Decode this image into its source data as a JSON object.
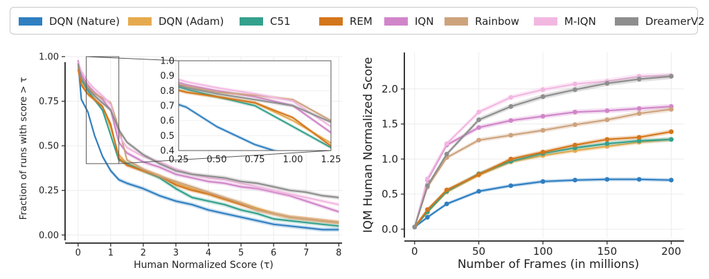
{
  "legend": [
    {
      "label": "DQN (Nature)",
      "color": "#2f7fc1"
    },
    {
      "label": "DQN (Adam)",
      "color": "#e6aa4e"
    },
    {
      "label": "C51",
      "color": "#34a18d"
    },
    {
      "label": "REM",
      "color": "#d4761b"
    },
    {
      "label": "IQN",
      "color": "#d185c9"
    },
    {
      "label": "Rainbow",
      "color": "#cda37c"
    },
    {
      "label": "M-IQN",
      "color": "#f2b7e1"
    },
    {
      "label": "DreamerV2",
      "color": "#8e8e8e"
    }
  ],
  "chart_data": [
    {
      "type": "line",
      "xlabel": "Human Normalized Score (τ)",
      "ylabel": "Fraction of runs with score > τ",
      "xlim": [
        -0.4,
        8.1
      ],
      "ylim": [
        -0.03,
        1.0
      ],
      "xticks": [
        "0",
        "1",
        "2",
        "3",
        "4",
        "5",
        "6",
        "7",
        "8"
      ],
      "yticks": [
        "0.00",
        "0.25",
        "0.50",
        "0.75",
        "1.00"
      ],
      "grid": true,
      "series": [
        {
          "name": "DQN (Nature)",
          "color": "#2f7fc1",
          "x": [
            0,
            0.1,
            0.3,
            0.5,
            0.75,
            1,
            1.25,
            1.5,
            2,
            2.5,
            3,
            3.5,
            4,
            4.5,
            5,
            5.5,
            6,
            6.5,
            7,
            7.5,
            8
          ],
          "y": [
            0.97,
            0.76,
            0.69,
            0.56,
            0.44,
            0.36,
            0.31,
            0.29,
            0.26,
            0.22,
            0.19,
            0.17,
            0.14,
            0.12,
            0.1,
            0.08,
            0.06,
            0.05,
            0.04,
            0.03,
            0.03
          ]
        },
        {
          "name": "DQN (Adam)",
          "color": "#e6aa4e",
          "x": [
            0,
            0.1,
            0.3,
            0.5,
            0.75,
            1,
            1.25,
            1.5,
            2,
            2.5,
            3,
            3.5,
            4,
            4.5,
            5,
            5.5,
            6,
            6.5,
            7,
            7.5,
            8
          ],
          "y": [
            0.94,
            0.85,
            0.79,
            0.76,
            0.72,
            0.6,
            0.45,
            0.4,
            0.36,
            0.33,
            0.29,
            0.26,
            0.23,
            0.2,
            0.18,
            0.15,
            0.12,
            0.1,
            0.09,
            0.08,
            0.07
          ]
        },
        {
          "name": "C51",
          "color": "#34a18d",
          "x": [
            0,
            0.1,
            0.3,
            0.5,
            0.75,
            1,
            1.25,
            1.5,
            2,
            2.5,
            3,
            3.5,
            4,
            4.5,
            5,
            5.5,
            6,
            6.5,
            7,
            7.5,
            8
          ],
          "y": [
            0.95,
            0.87,
            0.81,
            0.76,
            0.7,
            0.56,
            0.42,
            0.4,
            0.36,
            0.32,
            0.26,
            0.21,
            0.19,
            0.17,
            0.14,
            0.12,
            0.09,
            0.08,
            0.07,
            0.06,
            0.05
          ]
        },
        {
          "name": "REM",
          "color": "#d4761b",
          "x": [
            0,
            0.1,
            0.3,
            0.5,
            0.75,
            1,
            1.25,
            1.5,
            2,
            2.5,
            3,
            3.5,
            4,
            4.5,
            5,
            5.5,
            6,
            6.5,
            7,
            7.5,
            8
          ],
          "y": [
            0.93,
            0.84,
            0.79,
            0.76,
            0.72,
            0.62,
            0.43,
            0.39,
            0.36,
            0.33,
            0.28,
            0.25,
            0.23,
            0.2,
            0.17,
            0.14,
            0.12,
            0.1,
            0.09,
            0.08,
            0.07
          ]
        },
        {
          "name": "IQN",
          "color": "#d185c9",
          "x": [
            0,
            0.1,
            0.3,
            0.5,
            0.75,
            1,
            1.25,
            1.5,
            2,
            2.5,
            3,
            3.5,
            4,
            4.5,
            5,
            5.5,
            6,
            6.5,
            7,
            7.5,
            8
          ],
          "y": [
            0.98,
            0.9,
            0.84,
            0.8,
            0.76,
            0.7,
            0.52,
            0.46,
            0.41,
            0.38,
            0.34,
            0.32,
            0.3,
            0.29,
            0.27,
            0.26,
            0.24,
            0.22,
            0.19,
            0.16,
            0.13
          ]
        },
        {
          "name": "Rainbow",
          "color": "#cda37c",
          "x": [
            0,
            0.1,
            0.3,
            0.5,
            0.75,
            1,
            1.25,
            1.5,
            2,
            2.5,
            3,
            3.5,
            4,
            4.5,
            5,
            5.5,
            6,
            6.5,
            7,
            7.5,
            8
          ],
          "y": [
            0.95,
            0.88,
            0.83,
            0.79,
            0.77,
            0.74,
            0.6,
            0.42,
            0.37,
            0.33,
            0.3,
            0.27,
            0.24,
            0.21,
            0.18,
            0.14,
            0.12,
            0.1,
            0.09,
            0.08,
            0.07
          ]
        },
        {
          "name": "M-IQN",
          "color": "#f2b7e1",
          "x": [
            0,
            0.1,
            0.3,
            0.5,
            0.75,
            1,
            1.25,
            1.5,
            2,
            2.5,
            3,
            3.5,
            4,
            4.5,
            5,
            5.5,
            6,
            6.5,
            7,
            7.5,
            8
          ],
          "y": [
            0.97,
            0.92,
            0.86,
            0.82,
            0.78,
            0.73,
            0.56,
            0.49,
            0.44,
            0.41,
            0.37,
            0.34,
            0.32,
            0.31,
            0.29,
            0.27,
            0.25,
            0.23,
            0.21,
            0.19,
            0.17
          ]
        },
        {
          "name": "DreamerV2",
          "color": "#8e8e8e",
          "x": [
            0,
            0.1,
            0.3,
            0.5,
            0.75,
            1,
            1.25,
            1.5,
            2,
            2.5,
            3,
            3.5,
            4,
            4.5,
            5,
            5.5,
            6,
            6.5,
            7,
            7.5,
            8
          ],
          "y": [
            0.96,
            0.88,
            0.82,
            0.78,
            0.74,
            0.7,
            0.59,
            0.52,
            0.45,
            0.4,
            0.36,
            0.34,
            0.33,
            0.32,
            0.3,
            0.29,
            0.27,
            0.25,
            0.24,
            0.22,
            0.21
          ]
        }
      ]
    },
    {
      "type": "line",
      "subtype": "inset",
      "xlim": [
        0.25,
        1.25
      ],
      "ylim": [
        0.4,
        1.0
      ],
      "xticks": [
        "0.25",
        "0.50",
        "0.75",
        "1.00",
        "1.25"
      ],
      "yticks": [
        "0.4",
        "0.5",
        "0.6",
        "0.7",
        "0.8",
        "0.9",
        "1.0"
      ],
      "series_note": "zoom of the left plot for τ in [0.25, 1.25]"
    },
    {
      "type": "line",
      "xlabel": "Number of Frames (in millions)",
      "ylabel": "IQM Human Normalized Score",
      "xlim": [
        -8,
        210
      ],
      "ylim": [
        -0.12,
        2.52
      ],
      "xticks": [
        "0",
        "50",
        "100",
        "150",
        "200"
      ],
      "yticks": [
        "0.0",
        "0.5",
        "1.0",
        "1.5",
        "2.0"
      ],
      "grid": true,
      "x": [
        0,
        10,
        25,
        50,
        75,
        100,
        125,
        150,
        175,
        200
      ],
      "series": [
        {
          "name": "DQN (Nature)",
          "color": "#2f7fc1",
          "values": [
            0.03,
            0.17,
            0.36,
            0.54,
            0.62,
            0.68,
            0.7,
            0.71,
            0.71,
            0.7
          ]
        },
        {
          "name": "DQN (Adam)",
          "color": "#e6aa4e",
          "values": [
            0.03,
            0.24,
            0.53,
            0.77,
            0.96,
            1.05,
            1.12,
            1.18,
            1.24,
            1.28
          ]
        },
        {
          "name": "C51",
          "color": "#34a18d",
          "values": [
            0.03,
            0.25,
            0.54,
            0.79,
            0.97,
            1.08,
            1.16,
            1.22,
            1.26,
            1.28
          ]
        },
        {
          "name": "REM",
          "color": "#d4761b",
          "values": [
            0.03,
            0.28,
            0.56,
            0.78,
            1.0,
            1.1,
            1.2,
            1.28,
            1.31,
            1.39
          ]
        },
        {
          "name": "IQN",
          "color": "#d185c9",
          "values": [
            0.03,
            0.7,
            1.2,
            1.45,
            1.55,
            1.61,
            1.67,
            1.69,
            1.72,
            1.75
          ]
        },
        {
          "name": "Rainbow",
          "color": "#cda37c",
          "values": [
            0.03,
            0.6,
            1.02,
            1.27,
            1.34,
            1.41,
            1.49,
            1.56,
            1.65,
            1.71
          ]
        },
        {
          "name": "M-IQN",
          "color": "#f2b7e1",
          "values": [
            0.03,
            0.72,
            1.22,
            1.67,
            1.88,
            1.99,
            2.07,
            2.11,
            2.18,
            2.19
          ]
        },
        {
          "name": "DreamerV2",
          "color": "#8e8e8e",
          "values": [
            0.03,
            0.62,
            1.07,
            1.56,
            1.75,
            1.89,
            1.99,
            2.08,
            2.14,
            2.18
          ]
        }
      ]
    }
  ]
}
